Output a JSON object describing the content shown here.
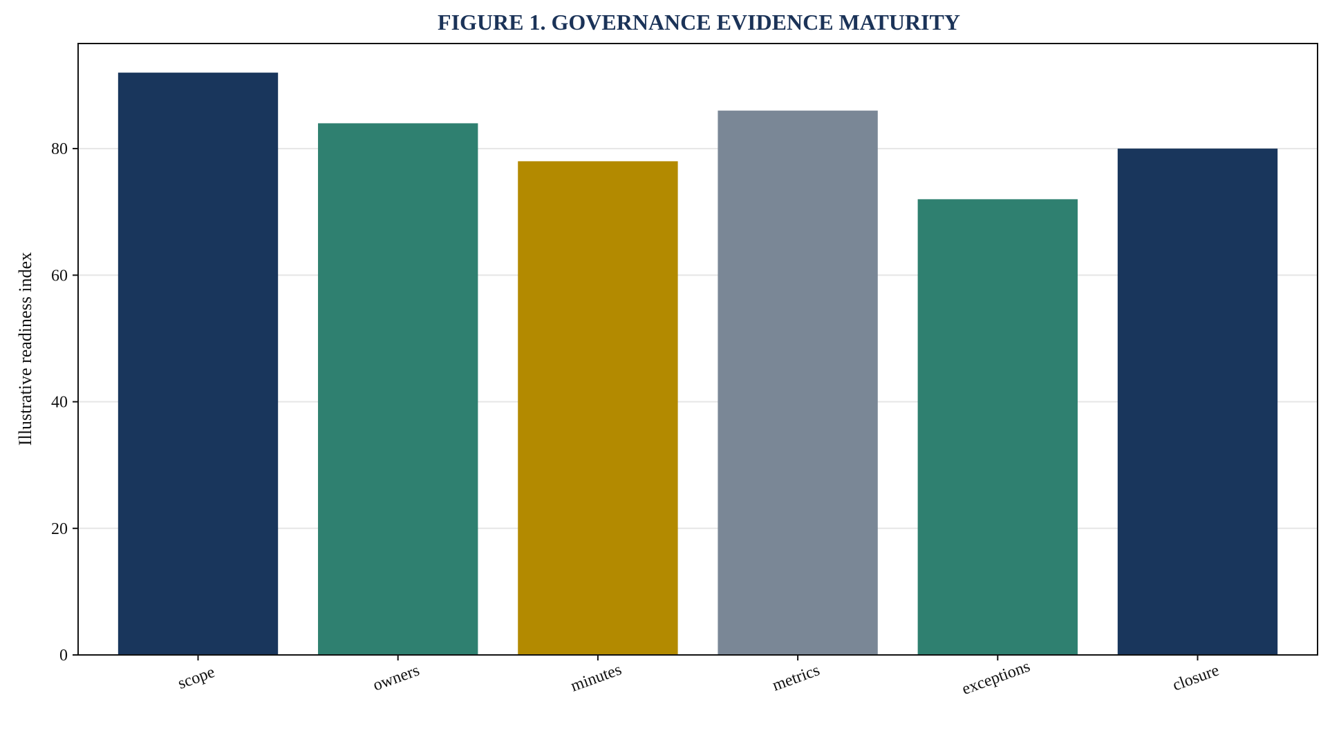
{
  "chart_data": {
    "type": "bar",
    "title": "FIGURE 1. GOVERNANCE EVIDENCE MATURITY",
    "xlabel": "",
    "ylabel": "Illustrative readiness index",
    "categories": [
      "scope",
      "owners",
      "minutes",
      "metrics",
      "exceptions",
      "closure"
    ],
    "values": [
      92,
      84,
      78,
      86,
      72,
      80
    ],
    "bar_colors": [
      "#19365c",
      "#2f8070",
      "#b38a00",
      "#7a8796",
      "#2f8070",
      "#19365c"
    ],
    "ylim": [
      0,
      96.6
    ],
    "yticks": [
      0,
      20,
      40,
      60,
      80
    ],
    "grid": true,
    "legend": "none",
    "colors": {
      "title": "#1b3358",
      "axis": "#111111",
      "grid": "#e6e6e6"
    }
  }
}
